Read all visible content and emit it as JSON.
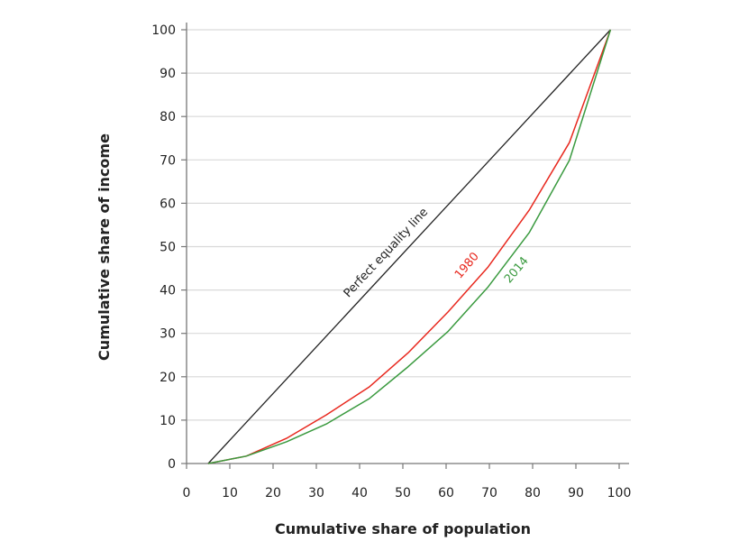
{
  "chart_data": {
    "type": "line",
    "title": "",
    "xlabel": "Cumulative share of population",
    "ylabel": "Cumulative share of income",
    "xlim": [
      0,
      100
    ],
    "ylim": [
      0,
      100
    ],
    "xticks": [
      "0",
      "10",
      "20",
      "30",
      "40",
      "50",
      "60",
      "70",
      "80",
      "90",
      "100"
    ],
    "yticks": [
      "0",
      "10",
      "20",
      "30",
      "40",
      "50",
      "60",
      "70",
      "80",
      "90",
      "100"
    ],
    "grid": "horizontal",
    "equality_line": {
      "label": "Perfect equality line",
      "color": "#222222",
      "x": [
        5,
        98
      ],
      "y": [
        0,
        100
      ]
    },
    "series": [
      {
        "name": "1980",
        "color": "#e8281e",
        "x": [
          5,
          13.8,
          23.1,
          32.3,
          42.3,
          51.2,
          60.5,
          69.7,
          79.2,
          88.5,
          98
        ],
        "y": [
          0,
          1.7,
          5.8,
          11.2,
          17.7,
          25.5,
          35,
          45.3,
          58.4,
          74,
          100
        ]
      },
      {
        "name": "2014",
        "color": "#3a9a3f",
        "x": [
          5,
          13.8,
          23.1,
          32.3,
          42.3,
          51.2,
          60.5,
          69.7,
          79.2,
          88.5,
          98
        ],
        "y": [
          0,
          1.7,
          5.0,
          9.1,
          15.0,
          22.3,
          30.5,
          40.7,
          53.2,
          69.9,
          100
        ]
      }
    ]
  }
}
